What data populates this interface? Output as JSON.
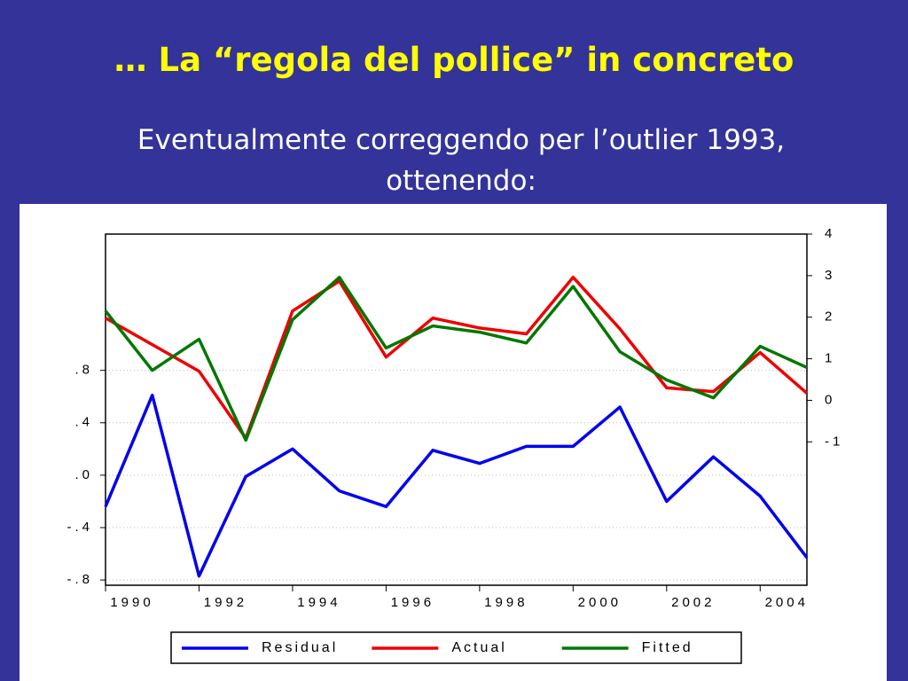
{
  "slide": {
    "title": "… La “regola del pollice” in concreto",
    "subtitle": [
      "Eventualmente correggendo per l’outlier 1993,",
      "ottenendo:"
    ]
  },
  "chart_data": {
    "type": "line",
    "x": [
      1990,
      1991,
      1992,
      1993,
      1994,
      1995,
      1996,
      1997,
      1998,
      1999,
      2000,
      2001,
      2002,
      2003,
      2004,
      2005
    ],
    "series": [
      {
        "name": "Residual",
        "color": "#0000ee",
        "values": [
          -0.24,
          0.61,
          -0.77,
          -0.01,
          0.2,
          -0.12,
          -0.24,
          0.19,
          0.09,
          0.22,
          0.22,
          0.52,
          -0.2,
          0.14,
          -0.16,
          -0.63
        ]
      },
      {
        "name": "Actual",
        "color": "#ee0000",
        "axis": "y2",
        "values": [
          1.98,
          1.34,
          0.7,
          -0.91,
          2.15,
          2.87,
          1.04,
          1.98,
          1.74,
          1.6,
          2.96,
          1.72,
          0.3,
          0.21,
          1.15,
          0.17
        ]
      },
      {
        "name": "Fitted",
        "color": "#007700",
        "axis": "y2",
        "values": [
          2.15,
          0.72,
          1.47,
          -0.96,
          1.94,
          2.96,
          1.26,
          1.79,
          1.64,
          1.38,
          2.74,
          1.17,
          0.49,
          0.06,
          1.3,
          0.79
        ]
      }
    ],
    "xlim": [
      1990,
      2005
    ],
    "xticks": [
      1990,
      1992,
      1994,
      1996,
      1998,
      2000,
      2002,
      2004
    ],
    "ylim": [
      -0.84,
      1.84
    ],
    "yticks": [
      {
        "value": -0.8,
        "label": "-.8"
      },
      {
        "value": -0.4,
        "label": "-.4"
      },
      {
        "value": 0,
        "label": ".0"
      },
      {
        "value": 0.4,
        "label": ".4"
      },
      {
        "value": 0.8,
        "label": ".8"
      }
    ],
    "y2lim": [
      -4.45,
      4
    ],
    "y2ticks": [
      -1,
      0,
      1,
      2,
      3,
      4
    ],
    "grid": true,
    "legend": "bottom"
  }
}
